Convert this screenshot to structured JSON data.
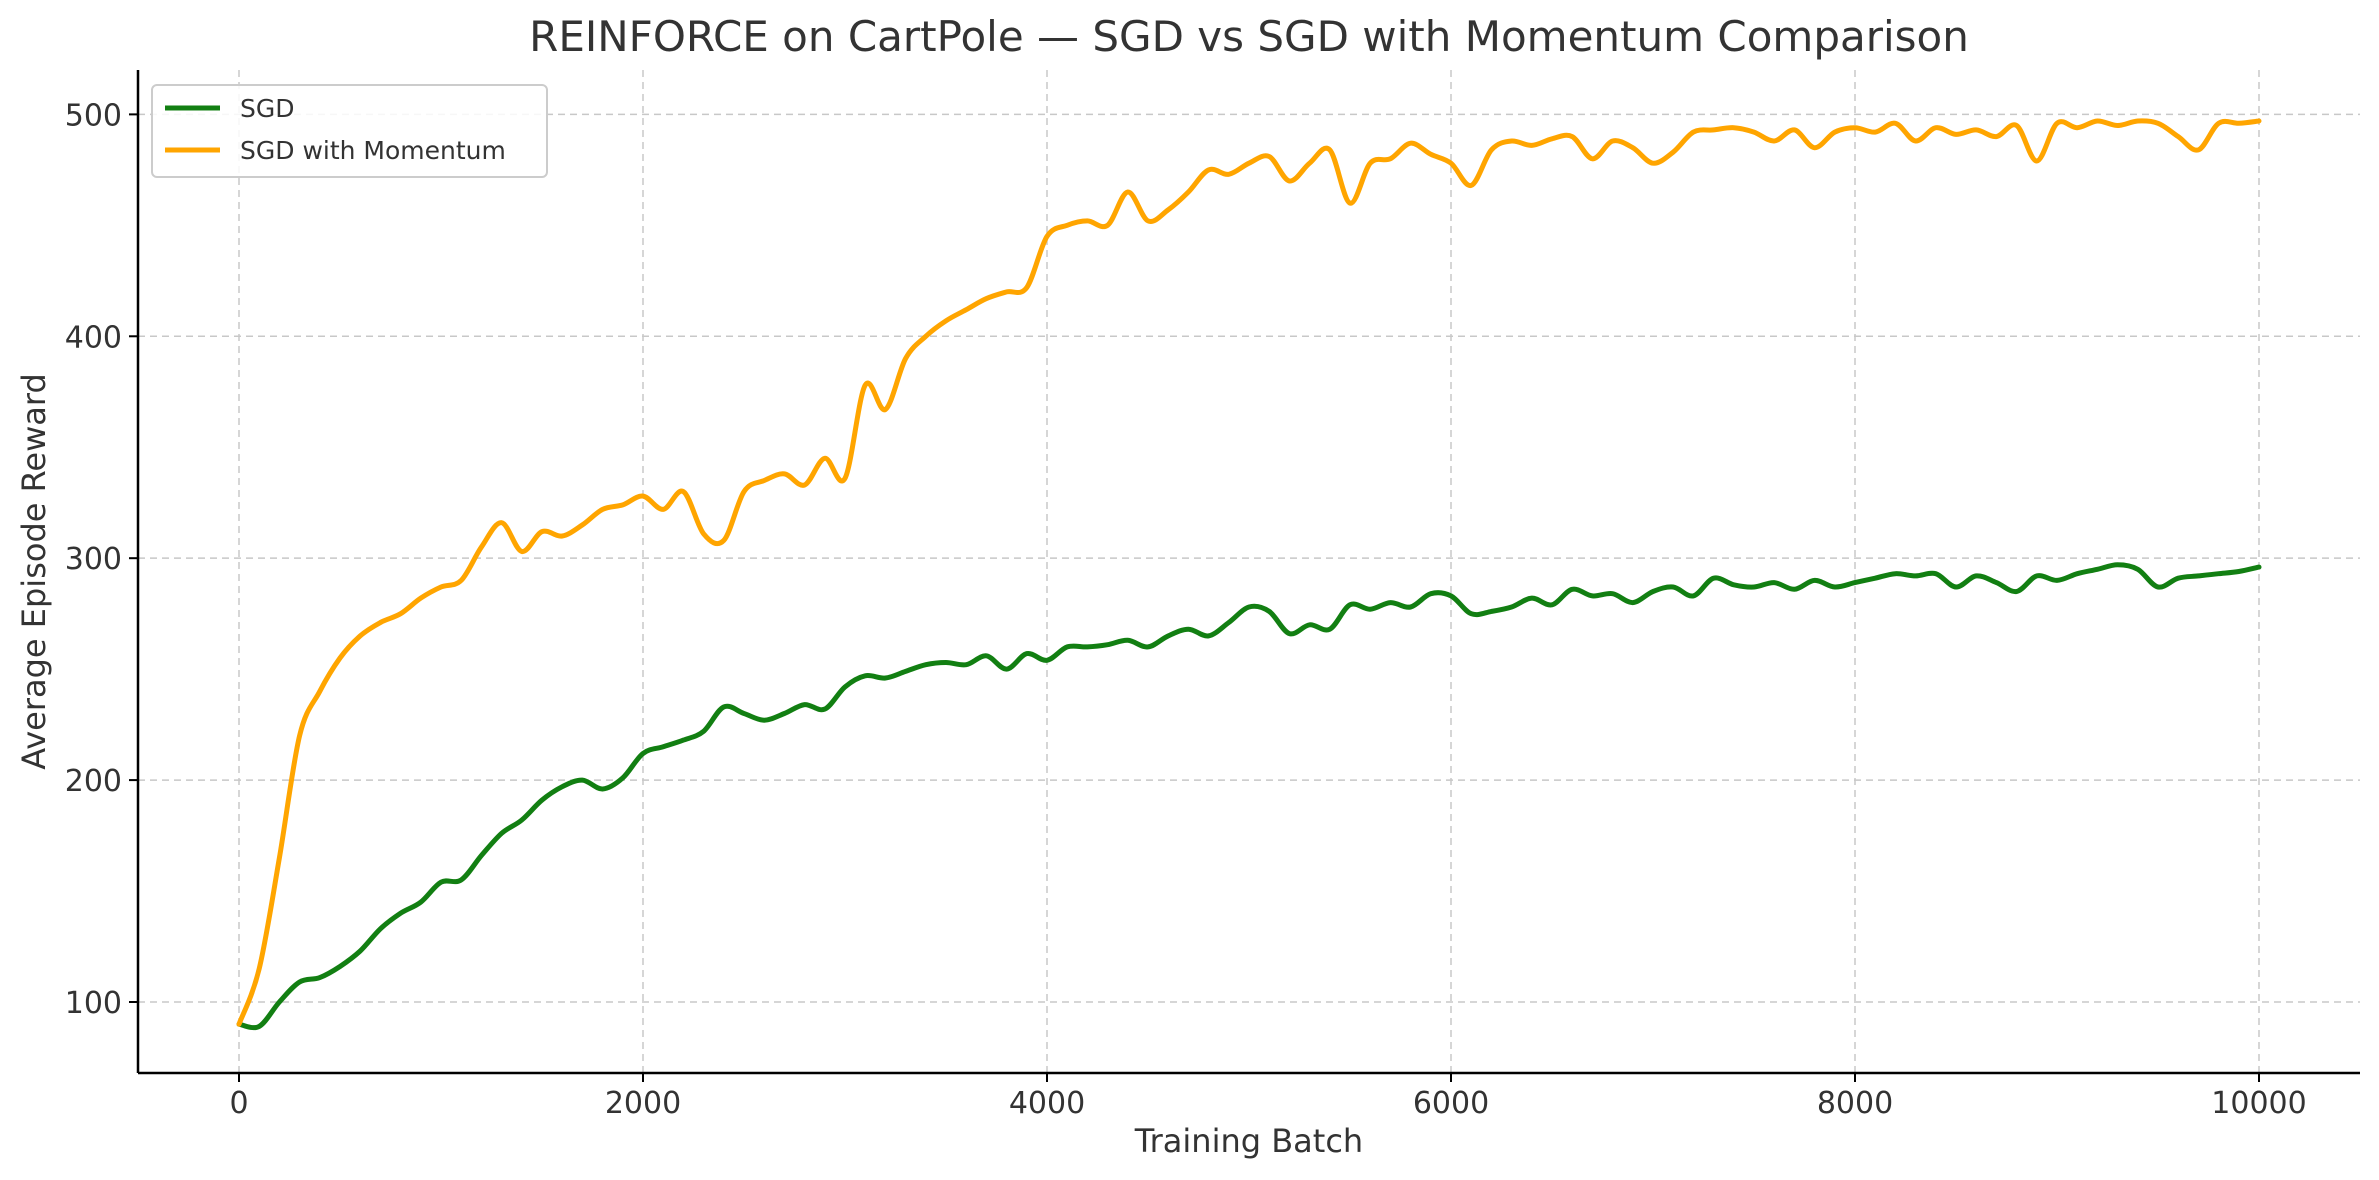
{
  "chart_data": {
    "type": "line",
    "title": "REINFORCE on CartPole — SGD vs SGD with Momentum Comparison",
    "xlabel": "Training Batch",
    "ylabel": "Average Episode Reward",
    "xlim": [
      -500,
      10500
    ],
    "ylim": [
      68,
      520
    ],
    "xticks": [
      0,
      2000,
      4000,
      6000,
      8000,
      10000
    ],
    "xtick_labels": [
      "0",
      "2000",
      "4000",
      "6000",
      "8000",
      "10000"
    ],
    "yticks": [
      100,
      200,
      300,
      400,
      500
    ],
    "ytick_labels": [
      "100",
      "200",
      "300",
      "400",
      "500"
    ],
    "grid": true,
    "legend_position": "top-left",
    "x": [
      0,
      100,
      200,
      300,
      400,
      500,
      600,
      700,
      800,
      900,
      1000,
      1100,
      1200,
      1300,
      1400,
      1500,
      1600,
      1700,
      1800,
      1900,
      2000,
      2100,
      2200,
      2300,
      2400,
      2500,
      2600,
      2700,
      2800,
      2900,
      3000,
      3100,
      3200,
      3300,
      3400,
      3500,
      3600,
      3700,
      3800,
      3900,
      4000,
      4100,
      4200,
      4300,
      4400,
      4500,
      4600,
      4700,
      4800,
      4900,
      5000,
      5100,
      5200,
      5300,
      5400,
      5500,
      5600,
      5700,
      5800,
      5900,
      6000,
      6100,
      6200,
      6300,
      6400,
      6500,
      6600,
      6700,
      6800,
      6900,
      7000,
      7100,
      7200,
      7300,
      7400,
      7500,
      7600,
      7700,
      7800,
      7900,
      8000,
      8100,
      8200,
      8300,
      8400,
      8500,
      8600,
      8700,
      8800,
      8900,
      9000,
      9100,
      9200,
      9300,
      9400,
      9500,
      9600,
      9700,
      9800,
      9900,
      10000
    ],
    "series": [
      {
        "name": "SGD",
        "color": "#127f12",
        "values": [
          90,
          89,
          100,
          109,
          111,
          116,
          123,
          133,
          140,
          145,
          154,
          155,
          166,
          176,
          182,
          191,
          197,
          200,
          196,
          201,
          212,
          215,
          218,
          222,
          233,
          230,
          227,
          230,
          234,
          232,
          242,
          247,
          246,
          249,
          252,
          253,
          252,
          256,
          250,
          257,
          254,
          260,
          260,
          261,
          263,
          260,
          265,
          268,
          265,
          271,
          278,
          276,
          266,
          270,
          268,
          279,
          277,
          280,
          278,
          284,
          283,
          275,
          276,
          278,
          282,
          279,
          286,
          283,
          284,
          280,
          285,
          287,
          283,
          291,
          288,
          287,
          289,
          286,
          290,
          287,
          289,
          291,
          293,
          292,
          293,
          287,
          292,
          289,
          285,
          292,
          290,
          293,
          295,
          297,
          295,
          287,
          291,
          292,
          293,
          294,
          296
        ]
      },
      {
        "name": "SGD with Momentum",
        "color": "#ffa500",
        "values": [
          90,
          115,
          165,
          220,
          240,
          255,
          265,
          271,
          275,
          282,
          287,
          290,
          305,
          316,
          303,
          312,
          310,
          315,
          322,
          324,
          328,
          322,
          330,
          311,
          308,
          330,
          335,
          338,
          333,
          345,
          336,
          378,
          367,
          390,
          400,
          407,
          412,
          417,
          420,
          422,
          445,
          450,
          452,
          450,
          465,
          452,
          457,
          465,
          475,
          473,
          478,
          481,
          470,
          478,
          484,
          460,
          478,
          480,
          487,
          482,
          478,
          468,
          484,
          488,
          486,
          489,
          490,
          480,
          488,
          485,
          478,
          483,
          492,
          493,
          494,
          492,
          488,
          493,
          485,
          492,
          494,
          492,
          496,
          488,
          494,
          491,
          493,
          490,
          495,
          479,
          496,
          494,
          497,
          495,
          497,
          496,
          490,
          484,
          496,
          496,
          497
        ]
      }
    ]
  }
}
